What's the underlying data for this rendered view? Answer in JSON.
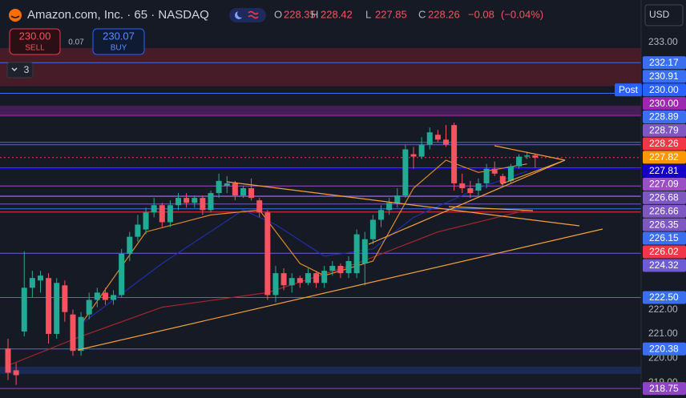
{
  "header": {
    "title": "Amazon.com, Inc. · 65 · NASDAQ",
    "ohlc": [
      {
        "letter": "O",
        "value": 228.35
      },
      {
        "letter": "H",
        "value": 228.42
      },
      {
        "letter": "L",
        "value": 227.85
      },
      {
        "letter": "C",
        "value": 228.26
      }
    ],
    "change": {
      "value": -0.08,
      "label": "−0.08"
    },
    "change_pct": {
      "value": -0.04,
      "label": "(−0.04%)"
    }
  },
  "trade": {
    "sell": {
      "price": {
        "value": 230,
        "label": "230.00"
      },
      "label": "SELL"
    },
    "spread": 0.07,
    "buy": {
      "price": 230.07,
      "label": "BUY"
    }
  },
  "indicators_count": 3,
  "currency": "USD",
  "chart_data": {
    "type": "candlestick",
    "up_color": "#22ab94",
    "down_color": "#f7525f",
    "ylim": [
      218.36,
      234.75
    ],
    "yticks": [
      {
        "value": 233,
        "label": "233.00"
      },
      {
        "value": 222,
        "label": "222.00"
      },
      {
        "value": 221,
        "label": "221.00"
      },
      {
        "value": 220,
        "label": "220.00"
      },
      {
        "value": 219,
        "label": "219.00"
      }
    ],
    "candles": {
      "open": [
        220.4,
        219.5,
        221.1,
        222.9,
        223.2,
        223.3,
        221.0,
        223.0,
        221.8,
        220.3,
        221.8,
        222.4,
        222.7,
        222.4,
        222.6,
        224.3,
        225.0,
        225.3,
        226.0,
        226.3,
        225.6,
        226.3,
        226.6,
        226.4,
        226.6,
        226.1,
        226.8,
        227.1,
        227.2,
        226.7,
        227.0,
        226.5,
        226.0,
        222.6,
        223.5,
        223.0,
        223.3,
        223.1,
        223.5,
        223.1,
        223.6,
        223.8,
        223.5,
        223.5,
        223.9,
        224.9,
        225.7,
        226.1,
        226.4,
        226.7,
        228.4,
        228.3,
        228.8,
        229.2,
        229.0,
        229.6,
        227.2,
        227.0,
        226.9,
        227.2,
        227.8,
        227.5,
        227.3,
        227.9,
        228.3,
        228.35
      ],
      "high": [
        220.8,
        219.8,
        224.4,
        223.6,
        223.6,
        223.5,
        223.3,
        223.2,
        222.0,
        221.9,
        222.7,
        222.9,
        222.9,
        222.8,
        224.5,
        225.2,
        225.9,
        226.2,
        226.6,
        226.4,
        226.5,
        226.8,
        226.8,
        226.7,
        226.7,
        226.9,
        227.6,
        227.5,
        227.3,
        227.1,
        227.4,
        226.6,
        226.1,
        223.8,
        223.7,
        223.5,
        223.4,
        223.7,
        223.6,
        223.8,
        224.0,
        223.9,
        224.2,
        225.3,
        225.2,
        225.9,
        226.3,
        226.6,
        227.0,
        228.8,
        228.7,
        229.1,
        229.5,
        229.4,
        229.6,
        229.7,
        227.6,
        227.3,
        227.4,
        228.0,
        228.1,
        227.6,
        228.0,
        228.4,
        228.5,
        228.42
      ],
      "low": [
        219.1,
        218.9,
        220.9,
        222.5,
        222.7,
        220.6,
        220.8,
        221.5,
        220.1,
        220.1,
        221.6,
        222.1,
        222.2,
        222.2,
        222.5,
        224.0,
        224.8,
        225.1,
        225.8,
        225.4,
        225.4,
        226.1,
        226.2,
        226.2,
        225.9,
        226.0,
        226.6,
        226.8,
        226.5,
        226.6,
        226.5,
        225.8,
        222.4,
        222.3,
        222.8,
        222.7,
        222.9,
        223.0,
        222.9,
        222.9,
        223.4,
        223.3,
        223.3,
        223.3,
        223.0,
        224.7,
        225.4,
        225.9,
        226.2,
        226.6,
        227.8,
        228.2,
        228.6,
        228.9,
        228.7,
        226.9,
        226.8,
        226.6,
        226.7,
        227.0,
        227.5,
        227.1,
        227.2,
        227.8,
        228.2,
        227.85
      ],
      "close": [
        219.4,
        219.3,
        222.9,
        223.3,
        223.4,
        221.0,
        223.1,
        221.9,
        220.3,
        221.7,
        222.4,
        222.7,
        222.4,
        222.6,
        224.3,
        225.0,
        225.5,
        226.0,
        226.3,
        225.6,
        226.3,
        226.6,
        226.4,
        226.6,
        226.1,
        226.8,
        227.3,
        227.2,
        226.7,
        227.0,
        226.6,
        226.0,
        222.6,
        223.5,
        223.0,
        223.3,
        223.1,
        223.5,
        223.1,
        223.6,
        223.8,
        223.5,
        224.0,
        225.1,
        224.9,
        225.7,
        226.1,
        226.4,
        226.7,
        228.6,
        228.3,
        228.8,
        229.3,
        229.0,
        228.8,
        227.2,
        227.0,
        226.8,
        227.2,
        227.8,
        227.6,
        227.2,
        227.9,
        228.3,
        228.35,
        228.26
      ]
    },
    "lines": [
      {
        "color": "#1e2fa8",
        "x": [
          9,
          19,
          29,
          33,
          39,
          45,
          50,
          58,
          64
        ],
        "values": [
          221.4,
          223.9,
          226.1,
          225.5,
          224.2,
          224.5,
          225.8,
          227.0,
          227.7
        ]
      },
      {
        "color": "#a3262e",
        "x": [
          0,
          9,
          19,
          32,
          43,
          53,
          64
        ],
        "values": [
          219.7,
          220.9,
          222.1,
          222.7,
          223.9,
          225.2,
          226.1
        ]
      },
      {
        "color": "#d98a2b",
        "x": [
          9,
          17,
          25,
          31,
          36,
          39,
          45,
          50,
          54,
          58,
          64
        ],
        "values": [
          221.4,
          225.2,
          225.9,
          226.1,
          223.9,
          223.4,
          224.0,
          227.0,
          228.15,
          227.65,
          228.0
        ]
      }
    ],
    "zones": [
      {
        "from": 232.77,
        "to": 231.2,
        "color": "rgba(120,30,45,0.5)"
      },
      {
        "from": 230.4,
        "to": 229.95,
        "color": "rgba(156,39,176,0.35)"
      },
      {
        "from": 219.65,
        "to": 219.35,
        "color": "rgba(41,98,255,0.22)"
      }
    ],
    "price_lines": [
      {
        "value": 232.17,
        "color": "#3a6ff0"
      },
      {
        "value": 230.91,
        "color": "#3a6ff0"
      },
      {
        "value": 230,
        "label": "230.00",
        "color": "#2962ff",
        "tag": "Post"
      },
      {
        "value": 230,
        "label": "230.00",
        "color": "#9c27b0"
      },
      {
        "value": 228.89,
        "color": "#3a6ff0"
      },
      {
        "value": 228.79,
        "color": "#7e57c2"
      },
      {
        "value": 228.26,
        "color": "#f23645",
        "style": "dotted"
      },
      {
        "value": 227.82,
        "color": "#ff9800"
      },
      {
        "value": 227.81,
        "color": "#1400c8"
      },
      {
        "value": 227.09,
        "color": "#9c4fc4"
      },
      {
        "value": 226.68,
        "color": "#7e57c2"
      },
      {
        "value": 226.66,
        "color": "#7e57c2"
      },
      {
        "value": 226.35,
        "color": "#7e57c2"
      },
      {
        "value": 226.15,
        "color": "#3a6ff0"
      },
      {
        "value": 226.02,
        "color": "#f23645"
      },
      {
        "value": 224.32,
        "color": "#6f5bd6"
      },
      {
        "value": 222.5,
        "label": "222.50",
        "color": "#3a6ff0"
      },
      {
        "value": 220.38,
        "color": "#3a6ff0"
      },
      {
        "value": 218.75,
        "color": "#8e44c4"
      }
    ]
  }
}
